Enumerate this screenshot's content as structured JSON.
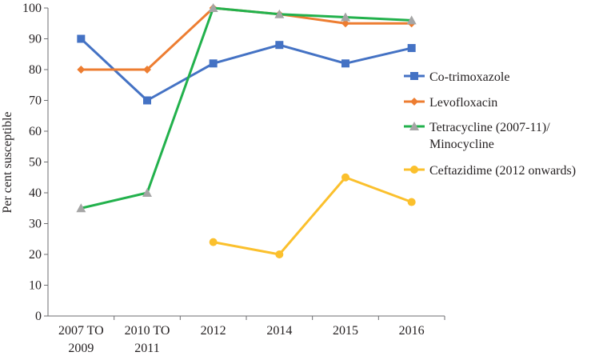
{
  "chart_data": {
    "type": "line",
    "categories": [
      [
        "2007 TO",
        "2009"
      ],
      [
        "2010 TO",
        "2011"
      ],
      [
        "2012"
      ],
      [
        "2014"
      ],
      [
        "2015"
      ],
      [
        "2016"
      ]
    ],
    "ylabel": "Per cent susceptible",
    "xlabel": "",
    "ylim": [
      0,
      100
    ],
    "yticks": [
      0,
      10,
      20,
      30,
      40,
      50,
      60,
      70,
      80,
      90,
      100
    ],
    "grid": false,
    "legend_position": "right",
    "series": [
      {
        "name": [
          "Co-trimoxazole"
        ],
        "color": "#4472c4",
        "marker": "square",
        "values": [
          90,
          70,
          82,
          88,
          82,
          87
        ]
      },
      {
        "name": [
          "Levofloxacin"
        ],
        "color": "#ed7d31",
        "marker": "diamond",
        "values": [
          80,
          80,
          100,
          98,
          95,
          95
        ]
      },
      {
        "name": [
          "Tetracycline (2007-11)/",
          "Minocycline"
        ],
        "color": "#22b14c",
        "marker": "triangle",
        "marker_color": "#a5a5a5",
        "values": [
          35,
          40,
          100,
          98,
          97,
          96
        ]
      },
      {
        "name": [
          "Ceftazidime (2012 onwards)"
        ],
        "color": "#fbc02d",
        "marker": "circle",
        "values": [
          null,
          null,
          24,
          20,
          45,
          37
        ]
      }
    ]
  }
}
